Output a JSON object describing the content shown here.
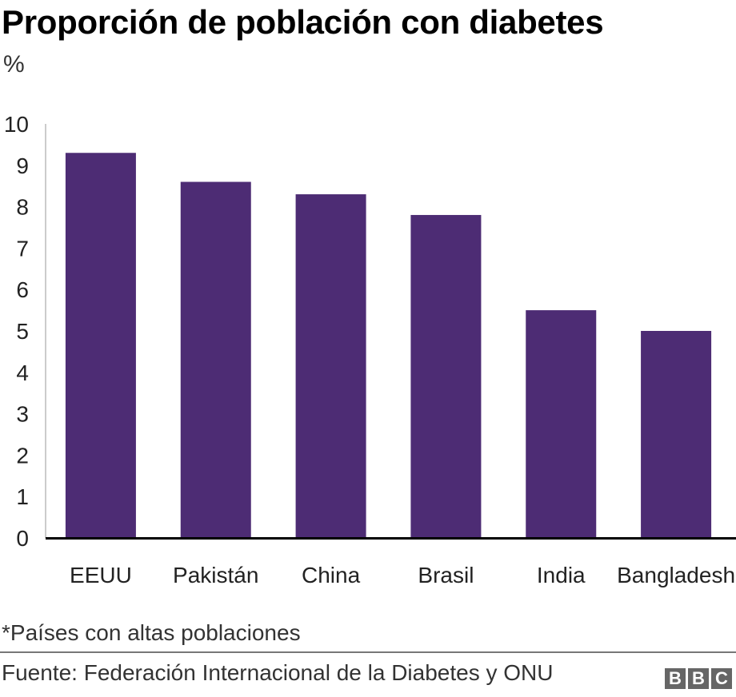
{
  "header": {
    "title": "Proporción de población con diabetes",
    "subtitle": "%"
  },
  "chart_data": {
    "type": "bar",
    "title": "Proporción de población con diabetes",
    "ylabel": "%",
    "xlabel": "",
    "categories": [
      "EEUU",
      "Pakistán",
      "China",
      "Brasil",
      "India",
      "Bangladesh"
    ],
    "values": [
      9.3,
      8.6,
      8.3,
      7.8,
      5.5,
      5.0
    ],
    "ylim": [
      0,
      10
    ],
    "yticks": [
      0,
      1,
      2,
      3,
      4,
      5,
      6,
      7,
      8,
      9,
      10
    ],
    "grid": false,
    "bar_color": "#4d2c74"
  },
  "footer": {
    "note": "*Países con altas poblaciones",
    "source": "Fuente: Federación Internacional de la Diabetes y ONU",
    "logo_letters": [
      "B",
      "B",
      "C"
    ]
  }
}
